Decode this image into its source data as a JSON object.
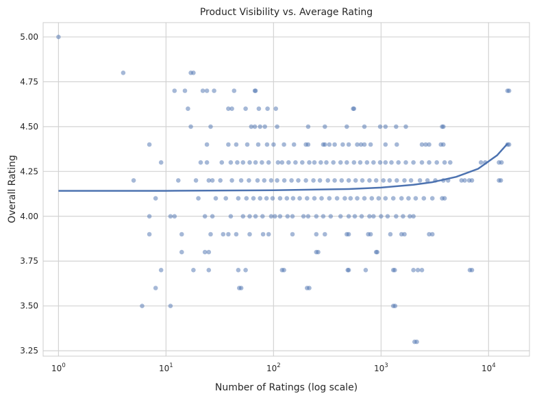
{
  "chart_data": {
    "type": "scatter",
    "title": "Product Visibility vs. Average Rating",
    "xlabel": "Number of Ratings (log scale)",
    "ylabel": "Overall Rating",
    "xscale": "log",
    "xlim": [
      0.72,
      24000
    ],
    "ylim": [
      3.22,
      5.08
    ],
    "grid": true,
    "point_color": "#4c72b0",
    "line_color": "#4c72b0",
    "x_ticks": [
      {
        "value": 1,
        "base": "10",
        "exp": "0"
      },
      {
        "value": 10,
        "base": "10",
        "exp": "1"
      },
      {
        "value": 100,
        "base": "10",
        "exp": "2"
      },
      {
        "value": 1000,
        "base": "10",
        "exp": "3"
      },
      {
        "value": 10000,
        "base": "10",
        "exp": "4"
      }
    ],
    "y_ticks": [
      {
        "value": 3.25,
        "label": "3.25"
      },
      {
        "value": 3.5,
        "label": "3.50"
      },
      {
        "value": 3.75,
        "label": "3.75"
      },
      {
        "value": 4.0,
        "label": "4.00"
      },
      {
        "value": 4.25,
        "label": "4.25"
      },
      {
        "value": 4.5,
        "label": "4.50"
      },
      {
        "value": 4.75,
        "label": "4.75"
      },
      {
        "value": 5.0,
        "label": "5.00"
      }
    ],
    "series": [
      {
        "type": "scatter",
        "points": [
          [
            1,
            5.0
          ],
          [
            4,
            4.8
          ],
          [
            17,
            4.8
          ],
          [
            18,
            4.8
          ],
          [
            12,
            4.7
          ],
          [
            15,
            4.7
          ],
          [
            22,
            4.7
          ],
          [
            24,
            4.7
          ],
          [
            28,
            4.7
          ],
          [
            43,
            4.7
          ],
          [
            67,
            4.7
          ],
          [
            68,
            4.7
          ],
          [
            15000,
            4.7
          ],
          [
            15500,
            4.7
          ],
          [
            16,
            4.6
          ],
          [
            38,
            4.6
          ],
          [
            41,
            4.6
          ],
          [
            55,
            4.6
          ],
          [
            73,
            4.6
          ],
          [
            88,
            4.6
          ],
          [
            105,
            4.6
          ],
          [
            550,
            4.6
          ],
          [
            560,
            4.6
          ],
          [
            17,
            4.5
          ],
          [
            26,
            4.5
          ],
          [
            62,
            4.5
          ],
          [
            67,
            4.5
          ],
          [
            75,
            4.5
          ],
          [
            83,
            4.5
          ],
          [
            108,
            4.5
          ],
          [
            210,
            4.5
          ],
          [
            300,
            4.5
          ],
          [
            480,
            4.5
          ],
          [
            700,
            4.5
          ],
          [
            980,
            4.5
          ],
          [
            1100,
            4.5
          ],
          [
            1380,
            4.5
          ],
          [
            1700,
            4.5
          ],
          [
            3700,
            4.5
          ],
          [
            3800,
            4.5
          ],
          [
            24,
            4.4
          ],
          [
            38,
            4.4
          ],
          [
            45,
            4.4
          ],
          [
            57,
            4.4
          ],
          [
            72,
            4.4
          ],
          [
            87,
            4.4
          ],
          [
            100,
            4.4
          ],
          [
            125,
            4.4
          ],
          [
            155,
            4.4
          ],
          [
            200,
            4.4
          ],
          [
            210,
            4.4
          ],
          [
            290,
            4.4
          ],
          [
            300,
            4.4
          ],
          [
            330,
            4.4
          ],
          [
            370,
            4.4
          ],
          [
            440,
            4.4
          ],
          [
            500,
            4.4
          ],
          [
            600,
            4.4
          ],
          [
            650,
            4.4
          ],
          [
            700,
            4.4
          ],
          [
            800,
            4.4
          ],
          [
            1100,
            4.4
          ],
          [
            1400,
            4.4
          ],
          [
            2400,
            4.4
          ],
          [
            2600,
            4.4
          ],
          [
            2800,
            4.4
          ],
          [
            3600,
            4.4
          ],
          [
            3800,
            4.4
          ],
          [
            15000,
            4.4
          ],
          [
            15500,
            4.4
          ],
          [
            7,
            4.4
          ],
          [
            9,
            4.3
          ],
          [
            21,
            4.3
          ],
          [
            24,
            4.3
          ],
          [
            33,
            4.3
          ],
          [
            40,
            4.3
          ],
          [
            46,
            4.3
          ],
          [
            52,
            4.3
          ],
          [
            60,
            4.3
          ],
          [
            68,
            4.3
          ],
          [
            78,
            4.3
          ],
          [
            90,
            4.3
          ],
          [
            110,
            4.3
          ],
          [
            120,
            4.3
          ],
          [
            138,
            4.3
          ],
          [
            160,
            4.3
          ],
          [
            185,
            4.3
          ],
          [
            215,
            4.3
          ],
          [
            240,
            4.3
          ],
          [
            275,
            4.3
          ],
          [
            310,
            4.3
          ],
          [
            360,
            4.3
          ],
          [
            420,
            4.3
          ],
          [
            480,
            4.3
          ],
          [
            560,
            4.3
          ],
          [
            640,
            4.3
          ],
          [
            740,
            4.3
          ],
          [
            850,
            4.3
          ],
          [
            980,
            4.3
          ],
          [
            1100,
            4.3
          ],
          [
            1250,
            4.3
          ],
          [
            1450,
            4.3
          ],
          [
            1700,
            4.3
          ],
          [
            2000,
            4.3
          ],
          [
            2400,
            4.3
          ],
          [
            2800,
            4.3
          ],
          [
            3300,
            4.3
          ],
          [
            3900,
            4.3
          ],
          [
            4400,
            4.3
          ],
          [
            8500,
            4.3
          ],
          [
            9300,
            4.3
          ],
          [
            12500,
            4.3
          ],
          [
            13200,
            4.3
          ],
          [
            5,
            4.2
          ],
          [
            13,
            4.2
          ],
          [
            19,
            4.2
          ],
          [
            25,
            4.2
          ],
          [
            27,
            4.2
          ],
          [
            32,
            4.2
          ],
          [
            41,
            4.2
          ],
          [
            50,
            4.2
          ],
          [
            59,
            4.2
          ],
          [
            71,
            4.2
          ],
          [
            82,
            4.2
          ],
          [
            95,
            4.2
          ],
          [
            108,
            4.2
          ],
          [
            126,
            4.2
          ],
          [
            147,
            4.2
          ],
          [
            170,
            4.2
          ],
          [
            200,
            4.2
          ],
          [
            235,
            4.2
          ],
          [
            270,
            4.2
          ],
          [
            320,
            4.2
          ],
          [
            370,
            4.2
          ],
          [
            430,
            4.2
          ],
          [
            500,
            4.2
          ],
          [
            580,
            4.2
          ],
          [
            670,
            4.2
          ],
          [
            780,
            4.2
          ],
          [
            900,
            4.2
          ],
          [
            1050,
            4.2
          ],
          [
            1200,
            4.2
          ],
          [
            1400,
            4.2
          ],
          [
            1650,
            4.2
          ],
          [
            1900,
            4.2
          ],
          [
            2300,
            4.2
          ],
          [
            2700,
            4.2
          ],
          [
            3200,
            4.2
          ],
          [
            3800,
            4.2
          ],
          [
            4200,
            4.2
          ],
          [
            5600,
            4.2
          ],
          [
            6000,
            4.2
          ],
          [
            6600,
            4.2
          ],
          [
            7000,
            4.2
          ],
          [
            12500,
            4.2
          ],
          [
            13000,
            4.2
          ],
          [
            8,
            4.1
          ],
          [
            20,
            4.1
          ],
          [
            29,
            4.1
          ],
          [
            36,
            4.1
          ],
          [
            47,
            4.1
          ],
          [
            56,
            4.1
          ],
          [
            65,
            4.1
          ],
          [
            75,
            4.1
          ],
          [
            86,
            4.1
          ],
          [
            98,
            4.1
          ],
          [
            115,
            4.1
          ],
          [
            133,
            4.1
          ],
          [
            152,
            4.1
          ],
          [
            175,
            4.1
          ],
          [
            205,
            4.1
          ],
          [
            240,
            4.1
          ],
          [
            280,
            4.1
          ],
          [
            330,
            4.1
          ],
          [
            390,
            4.1
          ],
          [
            460,
            4.1
          ],
          [
            520,
            4.1
          ],
          [
            600,
            4.1
          ],
          [
            700,
            4.1
          ],
          [
            820,
            4.1
          ],
          [
            950,
            4.1
          ],
          [
            1100,
            4.1
          ],
          [
            1300,
            4.1
          ],
          [
            1550,
            4.1
          ],
          [
            1800,
            4.1
          ],
          [
            2100,
            4.1
          ],
          [
            2500,
            4.1
          ],
          [
            3000,
            4.1
          ],
          [
            3700,
            4.1
          ],
          [
            3900,
            4.1
          ],
          [
            7,
            4.0
          ],
          [
            11,
            4.0
          ],
          [
            12,
            4.0
          ],
          [
            23,
            4.0
          ],
          [
            27,
            4.0
          ],
          [
            40,
            4.0
          ],
          [
            52,
            4.0
          ],
          [
            60,
            4.0
          ],
          [
            68,
            4.0
          ],
          [
            79,
            4.0
          ],
          [
            95,
            4.0
          ],
          [
            103,
            4.0
          ],
          [
            115,
            4.0
          ],
          [
            135,
            4.0
          ],
          [
            150,
            4.0
          ],
          [
            190,
            4.0
          ],
          [
            210,
            4.0
          ],
          [
            250,
            4.0
          ],
          [
            290,
            4.0
          ],
          [
            340,
            4.0
          ],
          [
            420,
            4.0
          ],
          [
            500,
            4.0
          ],
          [
            570,
            4.0
          ],
          [
            660,
            4.0
          ],
          [
            780,
            4.0
          ],
          [
            850,
            4.0
          ],
          [
            1000,
            4.0
          ],
          [
            1150,
            4.0
          ],
          [
            1380,
            4.0
          ],
          [
            1600,
            4.0
          ],
          [
            1850,
            4.0
          ],
          [
            2000,
            4.0
          ],
          [
            7,
            3.9
          ],
          [
            14,
            3.9
          ],
          [
            26,
            3.9
          ],
          [
            34,
            3.9
          ],
          [
            38,
            3.9
          ],
          [
            45,
            3.9
          ],
          [
            60,
            3.9
          ],
          [
            80,
            3.9
          ],
          [
            90,
            3.9
          ],
          [
            150,
            3.9
          ],
          [
            250,
            3.9
          ],
          [
            300,
            3.9
          ],
          [
            480,
            3.9
          ],
          [
            500,
            3.9
          ],
          [
            760,
            3.9
          ],
          [
            800,
            3.9
          ],
          [
            1220,
            3.9
          ],
          [
            1550,
            3.9
          ],
          [
            1650,
            3.9
          ],
          [
            2800,
            3.9
          ],
          [
            3000,
            3.9
          ],
          [
            14,
            3.8
          ],
          [
            23,
            3.8
          ],
          [
            25,
            3.8
          ],
          [
            250,
            3.8
          ],
          [
            260,
            3.8
          ],
          [
            900,
            3.8
          ],
          [
            920,
            3.8
          ],
          [
            9,
            3.7
          ],
          [
            18,
            3.7
          ],
          [
            25,
            3.7
          ],
          [
            47,
            3.7
          ],
          [
            55,
            3.7
          ],
          [
            120,
            3.7
          ],
          [
            125,
            3.7
          ],
          [
            490,
            3.7
          ],
          [
            500,
            3.7
          ],
          [
            720,
            3.7
          ],
          [
            1300,
            3.7
          ],
          [
            1340,
            3.7
          ],
          [
            2000,
            3.7
          ],
          [
            2200,
            3.7
          ],
          [
            2400,
            3.7
          ],
          [
            6700,
            3.7
          ],
          [
            7000,
            3.7
          ],
          [
            8,
            3.6
          ],
          [
            48,
            3.6
          ],
          [
            50,
            3.6
          ],
          [
            205,
            3.6
          ],
          [
            215,
            3.6
          ],
          [
            6,
            3.5
          ],
          [
            11,
            3.5
          ],
          [
            1300,
            3.5
          ],
          [
            1350,
            3.5
          ],
          [
            2050,
            3.3
          ],
          [
            2150,
            3.3
          ]
        ]
      },
      {
        "type": "line",
        "trend": [
          [
            1,
            4.142
          ],
          [
            10,
            4.142
          ],
          [
            100,
            4.145
          ],
          [
            500,
            4.152
          ],
          [
            1000,
            4.16
          ],
          [
            2000,
            4.176
          ],
          [
            3000,
            4.19
          ],
          [
            5000,
            4.22
          ],
          [
            8000,
            4.265
          ],
          [
            12000,
            4.34
          ],
          [
            15000,
            4.405
          ]
        ]
      }
    ]
  }
}
